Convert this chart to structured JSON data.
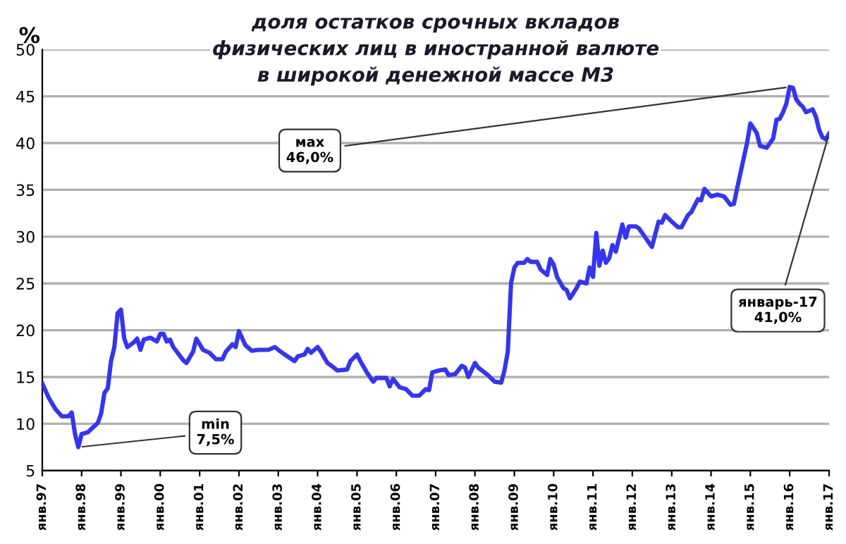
{
  "chart_data": {
    "type": "line",
    "title": "доля остатков срочных вкладов\nфизических лиц в иностранной валюте\nв широкой денежной массе М3",
    "ylabel": "%",
    "x": [
      "1997-01",
      "1997-03",
      "1997-05",
      "1997-07",
      "1997-09",
      "1997-10",
      "1997-11",
      "1997-12",
      "1998-01",
      "1998-03",
      "1998-06",
      "1998-07",
      "1998-08",
      "1998-09",
      "1998-10",
      "1998-11",
      "1998-12",
      "1999-01",
      "1999-02",
      "1999-03",
      "1999-05",
      "1999-06",
      "1999-07",
      "1999-08",
      "1999-10",
      "1999-12",
      "2000-01",
      "2000-02",
      "2000-03",
      "2000-04",
      "2000-05",
      "2000-08",
      "2000-09",
      "2000-11",
      "2000-12",
      "2001-02",
      "2001-04",
      "2001-06",
      "2001-08",
      "2001-09",
      "2001-11",
      "2001-12",
      "2002-01",
      "2002-03",
      "2002-05",
      "2002-07",
      "2002-10",
      "2002-12",
      "2003-01",
      "2003-03",
      "2003-06",
      "2003-07",
      "2003-09",
      "2003-10",
      "2003-11",
      "2004-01",
      "2004-02",
      "2004-04",
      "2004-06",
      "2004-07",
      "2004-10",
      "2004-11",
      "2005-01",
      "2005-02",
      "2005-04",
      "2005-05",
      "2005-06",
      "2005-07",
      "2005-10",
      "2005-11",
      "2005-12",
      "2006-02",
      "2006-04",
      "2006-06",
      "2006-08",
      "2006-10",
      "2006-11",
      "2006-12",
      "2007-02",
      "2007-04",
      "2007-05",
      "2007-07",
      "2007-09",
      "2007-10",
      "2007-11",
      "2008-01",
      "2008-02",
      "2008-05",
      "2008-07",
      "2008-09",
      "2008-10",
      "2008-11",
      "2008-12",
      "2009-01",
      "2009-02",
      "2009-04",
      "2009-05",
      "2009-06",
      "2009-08",
      "2009-09",
      "2009-10",
      "2009-11",
      "2009-12",
      "2010-01",
      "2010-02",
      "2010-04",
      "2010-05",
      "2010-06",
      "2010-08",
      "2010-09",
      "2010-11",
      "2010-12",
      "2011-01",
      "2011-02",
      "2011-03",
      "2011-04",
      "2011-05",
      "2011-06",
      "2011-07",
      "2011-08",
      "2011-10",
      "2011-11",
      "2011-12",
      "2012-02",
      "2012-03",
      "2012-04",
      "2012-07",
      "2012-09",
      "2012-10",
      "2012-11",
      "2013-01",
      "2013-03",
      "2013-04",
      "2013-06",
      "2013-07",
      "2013-09",
      "2013-10",
      "2013-11",
      "2014-01",
      "2014-03",
      "2014-05",
      "2014-07",
      "2014-08",
      "2014-09",
      "2014-12",
      "2015-01",
      "2015-03",
      "2015-04",
      "2015-06",
      "2015-08",
      "2015-09",
      "2015-10",
      "2015-11",
      "2015-12",
      "2016-01",
      "2016-02",
      "2016-03",
      "2016-04",
      "2016-05",
      "2016-06",
      "2016-08",
      "2016-09",
      "2016-10",
      "2016-11",
      "2016-12",
      "2017-01"
    ],
    "series": [
      {
        "color": "#3535ee",
        "values": [
          14.3,
          12.8,
          11.6,
          10.8,
          10.8,
          11.2,
          8.9,
          7.5,
          8.9,
          9.1,
          10.1,
          11.1,
          13.3,
          13.8,
          16.7,
          18.2,
          21.8,
          22.2,
          19.1,
          18.2,
          18.7,
          19.1,
          17.9,
          19.0,
          19.2,
          18.8,
          19.6,
          19.6,
          18.8,
          19.0,
          18.2,
          16.8,
          16.5,
          17.7,
          19.1,
          17.9,
          17.6,
          16.9,
          16.9,
          17.7,
          18.5,
          18.2,
          19.9,
          18.4,
          17.8,
          17.9,
          17.9,
          18.2,
          17.9,
          17.4,
          16.7,
          17.2,
          17.4,
          18.0,
          17.6,
          18.2,
          17.7,
          16.5,
          16.0,
          15.7,
          15.8,
          16.7,
          17.4,
          16.7,
          15.5,
          15.0,
          14.5,
          14.9,
          14.9,
          14.0,
          14.8,
          13.9,
          13.7,
          13.0,
          13.0,
          13.7,
          13.6,
          15.5,
          15.7,
          15.8,
          15.2,
          15.3,
          16.2,
          16.0,
          15.0,
          16.5,
          16.0,
          15.2,
          14.5,
          14.4,
          15.7,
          17.7,
          25.0,
          26.7,
          27.2,
          27.2,
          27.6,
          27.3,
          27.3,
          26.5,
          26.2,
          25.9,
          27.6,
          27.0,
          25.7,
          24.5,
          24.3,
          23.4,
          24.5,
          25.2,
          25.0,
          26.7,
          25.7,
          30.4,
          26.9,
          28.5,
          27.2,
          27.7,
          29.1,
          28.4,
          31.3,
          29.9,
          31.1,
          31.1,
          30.9,
          30.4,
          28.9,
          31.6,
          31.5,
          32.3,
          31.6,
          31.0,
          31.0,
          32.3,
          32.6,
          34.0,
          33.9,
          35.1,
          34.3,
          34.5,
          34.3,
          33.4,
          33.5,
          35.2,
          40.0,
          42.1,
          41.1,
          39.7,
          39.5,
          40.5,
          42.5,
          42.6,
          43.3,
          44.2,
          46.0,
          45.9,
          44.7,
          44.2,
          43.9,
          43.3,
          43.6,
          42.8,
          41.4,
          40.6,
          40.4,
          41.0
        ]
      }
    ],
    "xlim": [
      "1997-01",
      "2017-01"
    ],
    "xticks": [
      {
        "value": "1997-01",
        "label": "янв.97"
      },
      {
        "value": "1998-01",
        "label": "янв.98"
      },
      {
        "value": "1999-01",
        "label": "янв.99"
      },
      {
        "value": "2000-01",
        "label": "янв.00"
      },
      {
        "value": "2001-01",
        "label": "янв.01"
      },
      {
        "value": "2002-01",
        "label": "янв.02"
      },
      {
        "value": "2003-01",
        "label": "янв.03"
      },
      {
        "value": "2004-01",
        "label": "янв.04"
      },
      {
        "value": "2005-01",
        "label": "янв.05"
      },
      {
        "value": "2006-01",
        "label": "янв.06"
      },
      {
        "value": "2007-01",
        "label": "янв.07"
      },
      {
        "value": "2008-01",
        "label": "янв.08"
      },
      {
        "value": "2009-01",
        "label": "янв.09"
      },
      {
        "value": "2010-01",
        "label": "янв.10"
      },
      {
        "value": "2011-01",
        "label": "янв.11"
      },
      {
        "value": "2012-01",
        "label": "янв.12"
      },
      {
        "value": "2013-01",
        "label": "янв.13"
      },
      {
        "value": "2014-01",
        "label": "янв.14"
      },
      {
        "value": "2015-01",
        "label": "янв.15"
      },
      {
        "value": "2016-01",
        "label": "янв.16"
      },
      {
        "value": "2017-01",
        "label": "янв.17"
      }
    ],
    "ylim": [
      5,
      50
    ],
    "yticks": [
      5,
      10,
      15,
      20,
      25,
      30,
      35,
      40,
      45,
      50
    ],
    "grid": "y",
    "marker": "none",
    "line_style": "solid",
    "annotations": [
      {
        "text": "min\n7,5%",
        "x": "1997-12",
        "y": 7.5
      },
      {
        "text": "мах\n46,0%",
        "x": "2016-01",
        "y": 46.0
      },
      {
        "text": "январь-17\n41,0%",
        "x": "2017-01",
        "y": 41.0
      }
    ]
  }
}
